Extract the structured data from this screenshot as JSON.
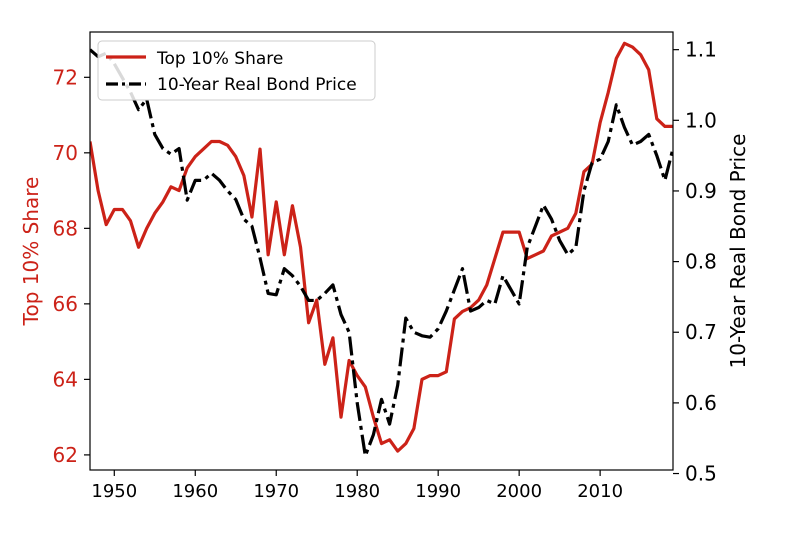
{
  "chart_data": {
    "type": "line",
    "x_range": [
      1947,
      2019
    ],
    "x_ticks": [
      1950,
      1960,
      1970,
      1980,
      1990,
      2000,
      2010
    ],
    "left_axis": {
      "label": "Top 10% Share",
      "range": [
        61.6,
        73.2
      ],
      "ticks": [
        62,
        64,
        66,
        68,
        70,
        72
      ],
      "color": "#cc2218"
    },
    "right_axis": {
      "label": "10-Year Real Bond Price",
      "range": [
        0.505,
        1.125
      ],
      "ticks": [
        "0.5",
        "0.6",
        "0.7",
        "0.8",
        "0.9",
        "1.0",
        "1.1"
      ],
      "tick_values": [
        0.5,
        0.6,
        0.7,
        0.8,
        0.9,
        1.0,
        1.1
      ],
      "color": "#000000"
    },
    "legend": {
      "position": "top-left",
      "entries": [
        "Top 10% Share",
        "10-Year Real Bond Price"
      ]
    },
    "series": [
      {
        "name": "Top 10% Share",
        "axis": "left",
        "color": "#cc2218",
        "style": "solid",
        "x": [
          1947,
          1948,
          1949,
          1950,
          1951,
          1952,
          1953,
          1954,
          1955,
          1956,
          1957,
          1958,
          1959,
          1960,
          1961,
          1962,
          1963,
          1964,
          1965,
          1966,
          1967,
          1968,
          1969,
          1970,
          1971,
          1972,
          1973,
          1974,
          1975,
          1976,
          1977,
          1978,
          1979,
          1980,
          1981,
          1982,
          1983,
          1984,
          1985,
          1986,
          1987,
          1988,
          1989,
          1990,
          1991,
          1992,
          1993,
          1994,
          1995,
          1996,
          1997,
          1998,
          1999,
          2000,
          2001,
          2002,
          2003,
          2004,
          2005,
          2006,
          2007,
          2008,
          2009,
          2010,
          2011,
          2012,
          2013,
          2014,
          2015,
          2016,
          2017,
          2018,
          2019
        ],
        "values": [
          70.3,
          69.0,
          68.1,
          68.5,
          68.5,
          68.2,
          67.5,
          68.0,
          68.4,
          68.7,
          69.1,
          69.0,
          69.6,
          69.9,
          70.1,
          70.3,
          70.3,
          70.2,
          69.9,
          69.4,
          68.3,
          70.1,
          67.3,
          68.7,
          67.3,
          68.6,
          67.5,
          65.5,
          66.1,
          64.4,
          65.1,
          63.0,
          64.5,
          64.1,
          63.8,
          63.0,
          62.3,
          62.4,
          62.1,
          62.3,
          62.7,
          64.0,
          64.1,
          64.1,
          64.2,
          65.6,
          65.8,
          65.9,
          66.1,
          66.5,
          67.2,
          67.9,
          67.9,
          67.9,
          67.2,
          67.3,
          67.4,
          67.8,
          67.9,
          68.0,
          68.4,
          69.5,
          69.7,
          70.8,
          71.6,
          72.5,
          72.9,
          72.8,
          72.6,
          72.2,
          70.9,
          70.7,
          70.7
        ]
      },
      {
        "name": "10-Year Real Bond Price",
        "axis": "right",
        "color": "#000000",
        "style": "dashdot",
        "x": [
          1947,
          1948,
          1949,
          1950,
          1951,
          1952,
          1953,
          1954,
          1955,
          1956,
          1957,
          1958,
          1959,
          1960,
          1961,
          1962,
          1963,
          1964,
          1965,
          1966,
          1967,
          1968,
          1969,
          1970,
          1971,
          1972,
          1973,
          1974,
          1975,
          1976,
          1977,
          1978,
          1979,
          1980,
          1981,
          1982,
          1983,
          1984,
          1985,
          1986,
          1987,
          1988,
          1989,
          1990,
          1991,
          1992,
          1993,
          1994,
          1995,
          1996,
          1997,
          1998,
          1999,
          2000,
          2001,
          2002,
          2003,
          2004,
          2005,
          2006,
          2007,
          2008,
          2009,
          2010,
          2011,
          2012,
          2013,
          2014,
          2015,
          2016,
          2017,
          2018,
          2019
        ],
        "values": [
          1.1,
          1.09,
          1.095,
          1.08,
          1.06,
          1.04,
          1.015,
          1.03,
          0.98,
          0.96,
          0.952,
          0.96,
          0.887,
          0.915,
          0.915,
          0.925,
          0.915,
          0.9,
          0.888,
          0.86,
          0.85,
          0.805,
          0.755,
          0.753,
          0.79,
          0.78,
          0.765,
          0.745,
          0.745,
          0.755,
          0.767,
          0.725,
          0.7,
          0.6,
          0.525,
          0.555,
          0.605,
          0.57,
          0.625,
          0.72,
          0.7,
          0.695,
          0.693,
          0.705,
          0.73,
          0.76,
          0.79,
          0.73,
          0.735,
          0.745,
          0.74,
          0.78,
          0.76,
          0.74,
          0.82,
          0.85,
          0.88,
          0.86,
          0.83,
          0.81,
          0.82,
          0.9,
          0.94,
          0.945,
          0.97,
          1.022,
          0.99,
          0.965,
          0.97,
          0.98,
          0.95,
          0.915,
          0.96
        ]
      }
    ]
  }
}
